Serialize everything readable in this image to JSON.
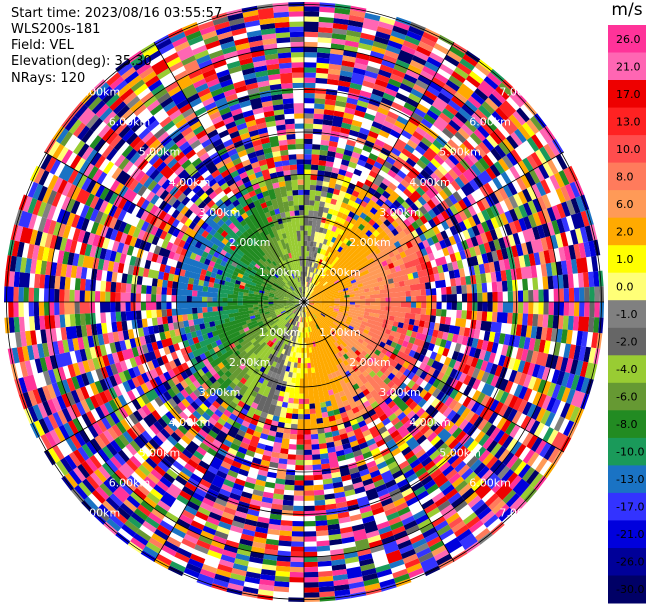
{
  "header": {
    "start_time": "Start time: 2023/08/16 03:55:57",
    "site": "WLS200s-181",
    "field": "Field: VEL",
    "elevation": "Elevation(deg): 35.30",
    "nrays": "NRays: 120"
  },
  "chart_data": {
    "type": "heatmap",
    "projection": "polar-ppi",
    "field": "VEL",
    "units": "m/s",
    "nrays": 120,
    "elevation_deg": 35.3,
    "range_rings_km": [
      1,
      2,
      3,
      4,
      5,
      6,
      7
    ],
    "ring_labels": [
      "1.00km",
      "2.00km",
      "3.00km",
      "4.00km",
      "5.00km",
      "6.00km",
      "7.00km"
    ],
    "spokes_deg": [
      0,
      30,
      60,
      90,
      120,
      150,
      180,
      210,
      240,
      270,
      300,
      330
    ],
    "colorbar": {
      "title": "m/s",
      "ticks": [
        "26.0",
        "21.0",
        "17.0",
        "13.0",
        "10.0",
        "8.0",
        "6.0",
        "2.0",
        "1.0",
        "0.0",
        "-1.0",
        "-2.0",
        "-4.0",
        "-6.0",
        "-8.0",
        "-10.0",
        "-13.0",
        "-17.0",
        "-21.0",
        "-26.0",
        "-30.0"
      ],
      "bins": [
        {
          "from": 26,
          "to": 30,
          "color": "#ff3399"
        },
        {
          "from": 21,
          "to": 26,
          "color": "#ff66b3"
        },
        {
          "from": 17,
          "to": 21,
          "color": "#ee0000"
        },
        {
          "from": 13,
          "to": 17,
          "color": "#ff2222"
        },
        {
          "from": 10,
          "to": 13,
          "color": "#ff4d4d"
        },
        {
          "from": 8,
          "to": 10,
          "color": "#ff7b5c"
        },
        {
          "from": 6,
          "to": 8,
          "color": "#ff9a57"
        },
        {
          "from": 2,
          "to": 6,
          "color": "#ffaa00"
        },
        {
          "from": 1,
          "to": 2,
          "color": "#ffff00"
        },
        {
          "from": 0,
          "to": 1,
          "color": "#ffff77"
        },
        {
          "from": -1,
          "to": 0,
          "color": "#808080"
        },
        {
          "from": -2,
          "to": -1,
          "color": "#666666"
        },
        {
          "from": -4,
          "to": -2,
          "color": "#99cc33"
        },
        {
          "from": -6,
          "to": -4,
          "color": "#669933"
        },
        {
          "from": -8,
          "to": -6,
          "color": "#228b22"
        },
        {
          "from": -10,
          "to": -8,
          "color": "#1a9a5a"
        },
        {
          "from": -13,
          "to": -10,
          "color": "#1a73c4"
        },
        {
          "from": -17,
          "to": -13,
          "color": "#3333ff"
        },
        {
          "from": -21,
          "to": -17,
          "color": "#0000dd"
        },
        {
          "from": -26,
          "to": -21,
          "color": "#000099"
        },
        {
          "from": -30,
          "to": -26,
          "color": "#000066"
        }
      ]
    }
  }
}
